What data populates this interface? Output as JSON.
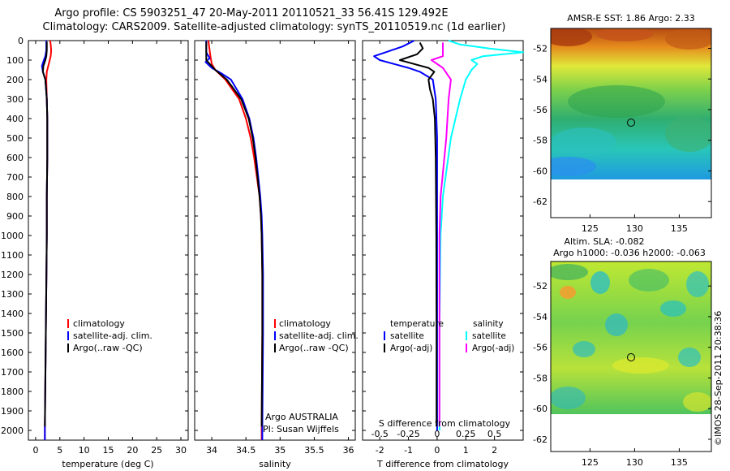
{
  "header": {
    "title_line1": "Argo profile: CS 5903251_47 20-May-2011 20110521_33 56.41S 129.492E",
    "title_line2": "Climatology: CARS2009. Satellite-adjusted climatology: synTS_20110519.nc (1d earlier)"
  },
  "colors": {
    "climatology": "#ff0000",
    "satellite": "#0000ff",
    "argo": "#000000",
    "sal_satellite": "#00ffff",
    "sal_argo": "#ff00ff"
  },
  "depth_axis": {
    "ylim": [
      0,
      2050
    ],
    "ticks": [
      "0",
      "100",
      "200",
      "300",
      "400",
      "500",
      "600",
      "700",
      "800",
      "900",
      "1000",
      "1100",
      "1200",
      "1300",
      "1400",
      "1500",
      "1600",
      "1700",
      "1800",
      "1900",
      "2000"
    ]
  },
  "chart_data": [
    {
      "type": "line",
      "panel": "temperature",
      "xlabel": "temperature (deg C)",
      "xlim": [
        -1.5,
        31.5
      ],
      "xticks": [
        "0",
        "5",
        "10",
        "15",
        "20",
        "25",
        "30"
      ],
      "legend": [
        "climatology",
        "satellite-adj. clim.",
        "Argo(..raw -QC)"
      ],
      "series": [
        {
          "name": "climatology",
          "color": "#ff0000",
          "depth": [
            0,
            20,
            50,
            80,
            100,
            130,
            160,
            200,
            300,
            400,
            600,
            800,
            1000,
            1500,
            2000,
            2050
          ],
          "values": [
            3.0,
            3.1,
            3.2,
            3.1,
            2.9,
            2.6,
            2.3,
            2.2,
            2.3,
            2.4,
            2.4,
            2.3,
            2.3,
            2.1,
            1.9,
            1.9
          ]
        },
        {
          "name": "satellite-adj. clim.",
          "color": "#0000ff",
          "depth": [
            0,
            20,
            50,
            80,
            100,
            130,
            160,
            200,
            300,
            400,
            600,
            800,
            1000,
            1500,
            2000,
            2050
          ],
          "values": [
            2.2,
            2.2,
            2.2,
            2.0,
            1.7,
            1.3,
            1.5,
            2.0,
            2.3,
            2.4,
            2.4,
            2.3,
            2.3,
            2.1,
            1.9,
            1.9
          ]
        },
        {
          "name": "Argo(..raw -QC)",
          "color": "#000000",
          "depth": [
            5,
            20,
            50,
            80,
            100,
            130,
            160,
            200,
            300,
            400,
            600,
            800,
            1000,
            1500,
            1980
          ],
          "values": [
            2.3,
            2.3,
            2.3,
            2.2,
            2.0,
            1.6,
            1.5,
            2.0,
            2.3,
            2.4,
            2.4,
            2.3,
            2.3,
            2.1,
            1.9
          ]
        }
      ]
    },
    {
      "type": "line",
      "panel": "salinity",
      "xlabel": "salinity",
      "xlim": [
        33.75,
        36.1
      ],
      "xticks": [
        "34",
        "34.5",
        "35",
        "35.5",
        "36"
      ],
      "legend": [
        "climatology",
        "satellite-adj. clim.",
        "Argo(..raw -QC)"
      ],
      "series": [
        {
          "name": "climatology",
          "color": "#ff0000",
          "depth": [
            0,
            80,
            120,
            150,
            200,
            300,
            400,
            500,
            600,
            700,
            800,
            900,
            1000,
            1200,
            1500,
            2000,
            2050
          ],
          "values": [
            33.95,
            33.98,
            34.0,
            34.05,
            34.2,
            34.4,
            34.5,
            34.57,
            34.62,
            34.66,
            34.7,
            34.72,
            34.73,
            34.74,
            34.74,
            34.73,
            34.73
          ]
        },
        {
          "name": "satellite-adj. clim.",
          "color": "#0000ff",
          "depth": [
            0,
            60,
            90,
            110,
            140,
            170,
            200,
            300,
            400,
            500,
            600,
            700,
            800,
            900,
            1000,
            1200,
            1500,
            2000,
            2050
          ],
          "values": [
            33.92,
            33.92,
            33.97,
            33.91,
            34.0,
            34.15,
            34.28,
            34.45,
            34.55,
            34.61,
            34.65,
            34.68,
            34.71,
            34.73,
            34.74,
            34.75,
            34.75,
            34.74,
            34.74
          ]
        },
        {
          "name": "Argo(..raw -QC)",
          "color": "#000000",
          "depth": [
            5,
            100,
            150,
            200,
            300,
            400,
            500,
            600,
            700,
            800,
            900,
            1000,
            1200,
            1500,
            1980
          ],
          "values": [
            33.92,
            33.92,
            34.05,
            34.22,
            34.43,
            34.54,
            34.6,
            34.64,
            34.67,
            34.7,
            34.72,
            34.73,
            34.74,
            34.74,
            34.73
          ]
        }
      ],
      "annotations": [
        "Argo AUSTRALIA",
        "PI: Susan Wijffels"
      ]
    },
    {
      "type": "line",
      "panel": "difference",
      "xlabel": "T difference from climatology",
      "xlabel_top": "S difference from climatology",
      "xlim": [
        -2.6,
        3.0
      ],
      "xticks": [
        "-2",
        "-1",
        "0",
        "1",
        "2"
      ],
      "xticks_s": [
        "-0.5",
        "-0.25",
        "0",
        "0.25",
        "0.5"
      ],
      "legend_headers": [
        "temperature",
        "salinity"
      ],
      "legend": [
        "satellite",
        "Argo(-adj)",
        "satellite",
        "Argo(-adj)"
      ],
      "series": [
        {
          "name": "temperature satellite",
          "color": "#0000ff",
          "depth": [
            0,
            30,
            60,
            80,
            100,
            120,
            140,
            160,
            200,
            300,
            500,
            800,
            1000,
            1500,
            2000
          ],
          "values": [
            -0.8,
            -1.2,
            -1.8,
            -2.2,
            -2.0,
            -1.5,
            -1.0,
            -0.6,
            -0.15,
            -0.05,
            0,
            0,
            0,
            0,
            0
          ]
        },
        {
          "name": "temperature Argo(-adj)",
          "color": "#000000",
          "depth": [
            10,
            40,
            70,
            100,
            120,
            140,
            160,
            180,
            200,
            250,
            300,
            400,
            600,
            1000,
            1500,
            1980
          ],
          "values": [
            -0.6,
            -0.5,
            -0.7,
            -1.3,
            -0.8,
            -0.3,
            -0.1,
            -0.2,
            -0.3,
            -0.25,
            -0.15,
            -0.08,
            -0.05,
            -0.03,
            -0.02,
            -0.02
          ]
        },
        {
          "name": "salinity satellite",
          "color": "#00ffff",
          "depth": [
            0,
            20,
            40,
            60,
            80,
            100,
            120,
            150,
            200,
            300,
            500,
            800,
            1000,
            1500,
            2000
          ],
          "values": [
            0.1,
            0.2,
            0.45,
            0.75,
            0.4,
            0.3,
            0.35,
            0.3,
            0.25,
            0.2,
            0.12,
            0.05,
            0.03,
            0.02,
            0.02
          ]
        },
        {
          "name": "salinity Argo(-adj)",
          "color": "#ff00ff",
          "depth": [
            10,
            80,
            100,
            140,
            200,
            300,
            500,
            800,
            1000,
            1500,
            1980
          ],
          "values": [
            0.05,
            0.05,
            -0.05,
            0.05,
            0.12,
            0.1,
            0.08,
            0.03,
            0.02,
            0.02,
            0.02
          ]
        }
      ]
    }
  ],
  "maps": [
    {
      "title": "AMSR-E SST: 1.86 Argo: 2.33",
      "yticks": [
        "-52",
        "-54",
        "-56",
        "-58",
        "-60",
        "-62"
      ],
      "xticks": [
        "125",
        "130",
        "135"
      ],
      "marker_lon": 129.5,
      "marker_lat": -56.4
    },
    {
      "title": "Altim. SLA: -0.082",
      "title2": "Argo h1000: -0.036 h2000: -0.063",
      "yticks": [
        "-52",
        "-54",
        "-56",
        "-58",
        "-60",
        "-62"
      ],
      "xticks": [
        "125",
        "130",
        "135"
      ],
      "marker_lon": 129.5,
      "marker_lat": -56.4
    }
  ],
  "watermark": "©IMOS 28-Sep-2011 20:38:36"
}
